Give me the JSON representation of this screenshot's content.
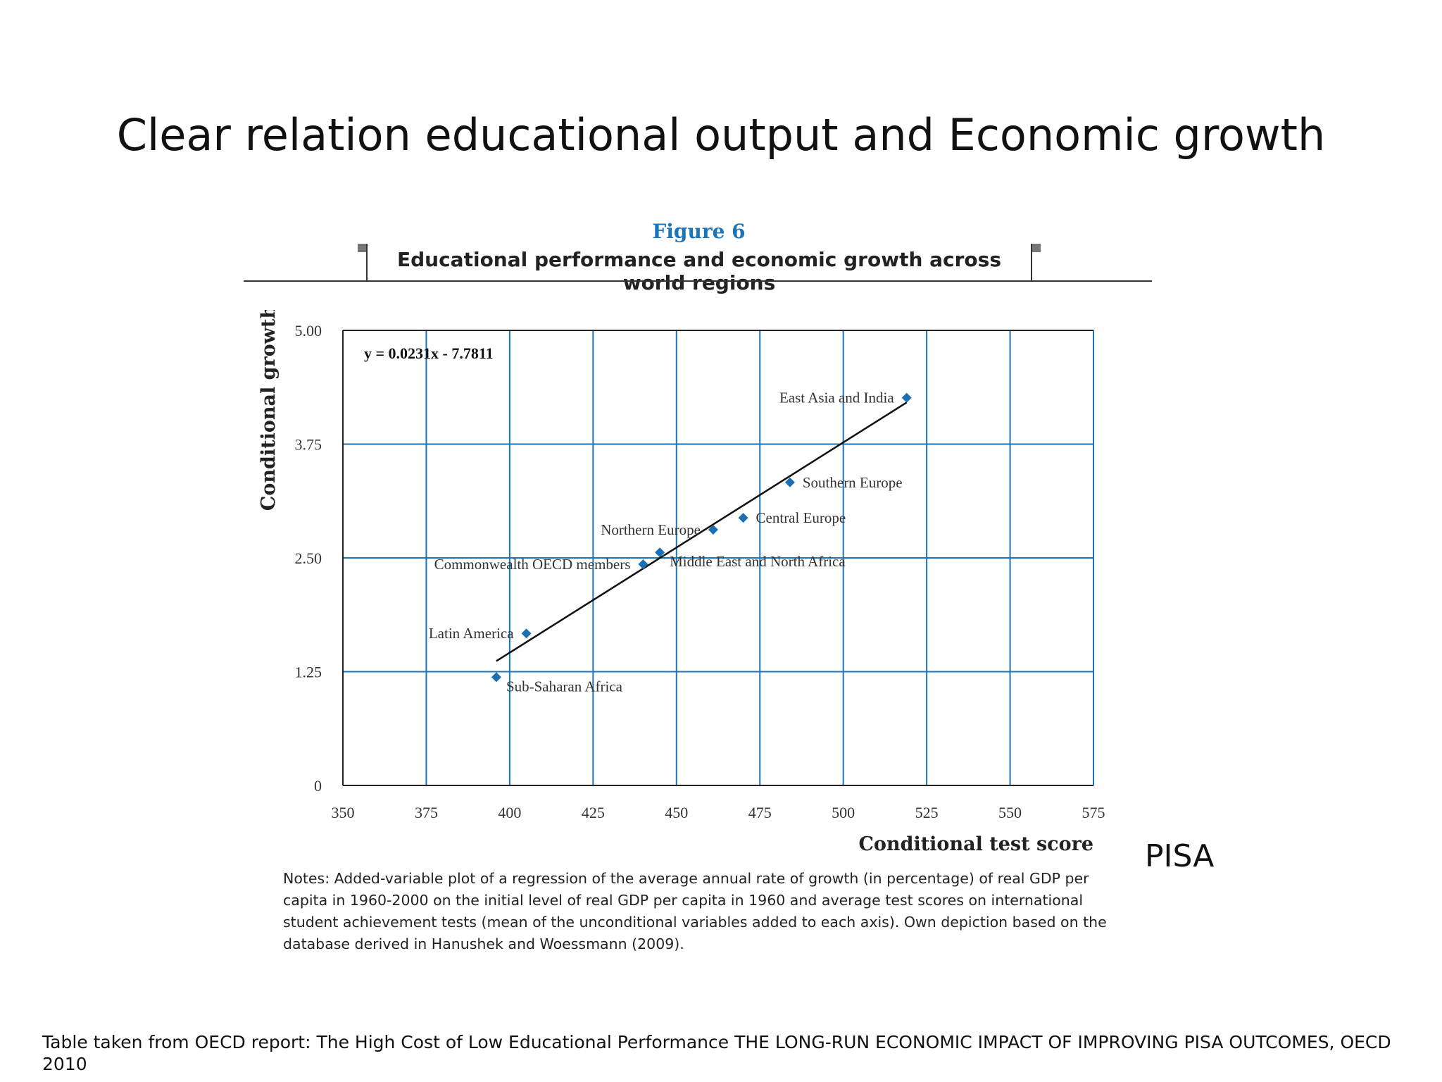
{
  "slide": {
    "title": "Clear relation educational output and Economic growth",
    "pisa_label": "PISA",
    "source": "Table taken from OECD report: The High Cost of Low Educational Performance THE LONG-RUN ECONOMIC IMPACT OF IMPROVING PISA OUTCOMES, OECD 2010"
  },
  "figure": {
    "label": "Figure 6",
    "title": "Educational performance and economic growth across world regions",
    "notes": "Notes: Added-variable plot of a regression of the average annual rate of growth (in percentage) of real GDP per capita in 1960-2000 on the initial level of real GDP per capita in 1960 and average test scores on international student achievement tests (mean of the unconditional variables added to each axis). Own depiction based on the database derived in Hanushek and Woessmann (2009)."
  },
  "colors": {
    "accent": "#1a75bb",
    "grid": "#1a75bb",
    "marker": "#1a6fb5",
    "trend": "#111111"
  },
  "chart_data": {
    "type": "scatter",
    "xlabel": "Conditional test score",
    "ylabel": "Conditional growth",
    "xlim": [
      350,
      575
    ],
    "ylim": [
      0,
      5
    ],
    "xticks": [
      "350",
      "375",
      "400",
      "425",
      "450",
      "475",
      "500",
      "525",
      "550",
      "575"
    ],
    "xtick_values": [
      350,
      375,
      400,
      425,
      450,
      475,
      500,
      525,
      550,
      575
    ],
    "yticks": [
      "0",
      "1.25",
      "2.50",
      "3.75",
      "5.00"
    ],
    "ytick_values": [
      0,
      1.25,
      2.5,
      3.75,
      5
    ],
    "grid": true,
    "equation": "y = 0.0231x - 7.7811",
    "trendline": {
      "slope": 0.0231,
      "intercept": -7.7811,
      "x_range": [
        396,
        519
      ]
    },
    "points": [
      {
        "label": "East Asia and India",
        "x": 519,
        "y": 4.26,
        "label_side": "left"
      },
      {
        "label": "Southern Europe",
        "x": 484,
        "y": 3.33,
        "label_side": "right"
      },
      {
        "label": "Central Europe",
        "x": 470,
        "y": 2.94,
        "label_side": "right"
      },
      {
        "label": "Northern Europe",
        "x": 461,
        "y": 2.81,
        "label_side": "left"
      },
      {
        "label": "Middle East and North Africa",
        "x": 445,
        "y": 2.56,
        "label_side": "right-below"
      },
      {
        "label": "Commonwealth OECD members",
        "x": 440,
        "y": 2.43,
        "label_side": "left"
      },
      {
        "label": "Latin America",
        "x": 405,
        "y": 1.67,
        "label_side": "left"
      },
      {
        "label": "Sub-Saharan Africa",
        "x": 396,
        "y": 1.19,
        "label_side": "right-below"
      }
    ]
  }
}
